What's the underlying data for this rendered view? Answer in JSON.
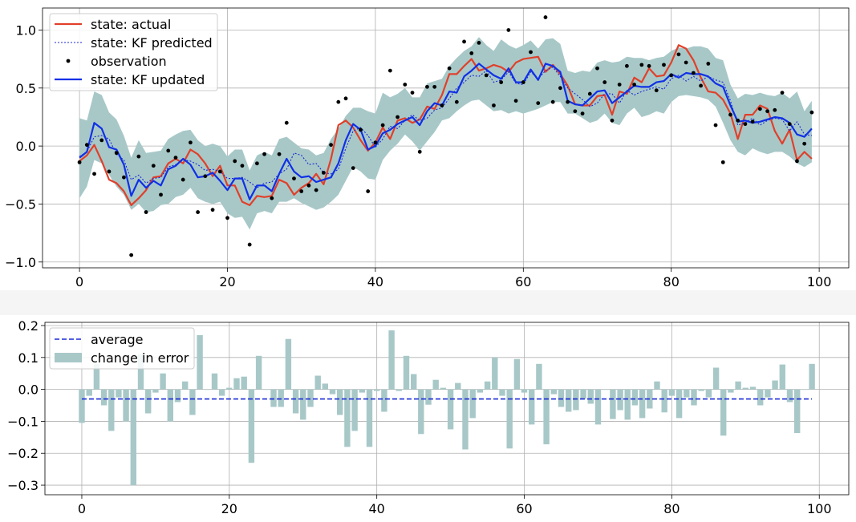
{
  "colors": {
    "actual": "#e0402a",
    "predicted": "#1a2ad6",
    "updated": "#1030e6",
    "band": "#a8c8c8",
    "observation": "#000000",
    "average": "#1a2ad6",
    "bar": "#a8c8c8",
    "grid": "#b0b0b0"
  },
  "chart_data": [
    {
      "type": "line",
      "xlabel": "",
      "ylabel": "",
      "xlim": [
        -5,
        104
      ],
      "ylim": [
        -1.05,
        1.19
      ],
      "xticks": [
        "0",
        "20",
        "40",
        "60",
        "80",
        "100"
      ],
      "yticks": [
        "−1.0",
        "−0.5",
        "0.0",
        "0.5",
        "1.0"
      ],
      "grid": true,
      "legend_position": "top-left",
      "legend": [
        "state: actual",
        "state: KF predicted",
        "observation",
        "state: KF updated"
      ],
      "series": [
        {
          "name": "state: actual",
          "values": [
            -0.13,
            -0.08,
            0.01,
            -0.13,
            -0.29,
            -0.32,
            -0.39,
            -0.51,
            -0.45,
            -0.38,
            -0.27,
            -0.26,
            -0.15,
            -0.11,
            -0.15,
            -0.03,
            -0.07,
            -0.15,
            -0.26,
            -0.17,
            -0.34,
            -0.34,
            -0.48,
            -0.51,
            -0.43,
            -0.44,
            -0.43,
            -0.29,
            -0.32,
            -0.42,
            -0.36,
            -0.32,
            -0.24,
            -0.33,
            -0.11,
            0.18,
            0.22,
            0.16,
            0.05,
            -0.04,
            0.03,
            0.16,
            0.06,
            0.22,
            0.24,
            0.2,
            0.23,
            0.34,
            0.32,
            0.44,
            0.62,
            0.62,
            0.69,
            0.75,
            0.65,
            0.67,
            0.7,
            0.68,
            0.64,
            0.72,
            0.75,
            0.76,
            0.77,
            0.64,
            0.7,
            0.62,
            0.52,
            0.36,
            0.35,
            0.35,
            0.43,
            0.44,
            0.27,
            0.47,
            0.45,
            0.59,
            0.55,
            0.67,
            0.6,
            0.61,
            0.72,
            0.87,
            0.84,
            0.74,
            0.59,
            0.47,
            0.46,
            0.4,
            0.28,
            0.06,
            0.27,
            0.27,
            0.35,
            0.32,
            0.13,
            0.02,
            0.14,
            -0.12,
            -0.05,
            -0.11
          ]
        },
        {
          "name": "state: KF predicted",
          "values": [
            -0.09,
            -0.05,
            0.08,
            0.09,
            0.06,
            -0.07,
            -0.12,
            -0.29,
            -0.25,
            -0.32,
            -0.28,
            -0.27,
            -0.18,
            -0.16,
            -0.12,
            -0.13,
            -0.16,
            -0.21,
            -0.2,
            -0.22,
            -0.28,
            -0.28,
            -0.27,
            -0.31,
            -0.36,
            -0.32,
            -0.31,
            -0.24,
            -0.2,
            -0.06,
            -0.08,
            -0.16,
            -0.15,
            -0.23,
            -0.24,
            -0.2,
            -0.02,
            0.13,
            0.16,
            0.09,
            -0.01,
            0.06,
            0.17,
            0.15,
            0.22,
            0.27,
            0.22,
            0.24,
            0.31,
            0.33,
            0.41,
            0.5,
            0.55,
            0.61,
            0.6,
            0.65,
            0.55,
            0.57,
            0.64,
            0.54,
            0.53,
            0.64,
            0.58,
            0.65,
            0.68,
            0.6,
            0.5,
            0.45,
            0.4,
            0.34,
            0.37,
            0.45,
            0.45,
            0.37,
            0.48,
            0.44,
            0.47,
            0.49,
            0.51,
            0.49,
            0.58,
            0.61,
            0.56,
            0.6,
            0.56,
            0.6,
            0.57,
            0.55,
            0.39,
            0.18,
            0.2,
            0.24,
            0.18,
            0.22,
            0.24,
            0.23,
            0.13,
            0.21,
            0.1,
            0.09
          ]
        },
        {
          "name": "state: KF updated",
          "values": [
            -0.1,
            -0.05,
            0.2,
            0.15,
            -0.01,
            -0.03,
            -0.16,
            -0.43,
            -0.29,
            -0.36,
            -0.3,
            -0.34,
            -0.2,
            -0.17,
            -0.11,
            -0.16,
            -0.27,
            -0.26,
            -0.23,
            -0.3,
            -0.38,
            -0.28,
            -0.28,
            -0.46,
            -0.34,
            -0.34,
            -0.39,
            -0.24,
            -0.11,
            -0.22,
            -0.27,
            -0.26,
            -0.31,
            -0.29,
            -0.27,
            -0.15,
            0.05,
            0.19,
            0.14,
            -0.03,
            0.0,
            0.11,
            0.14,
            0.19,
            0.22,
            0.25,
            0.18,
            0.3,
            0.37,
            0.35,
            0.47,
            0.46,
            0.6,
            0.65,
            0.71,
            0.66,
            0.61,
            0.58,
            0.67,
            0.55,
            0.55,
            0.66,
            0.57,
            0.71,
            0.69,
            0.64,
            0.39,
            0.36,
            0.35,
            0.41,
            0.47,
            0.48,
            0.37,
            0.42,
            0.47,
            0.52,
            0.51,
            0.51,
            0.55,
            0.56,
            0.62,
            0.59,
            0.63,
            0.62,
            0.62,
            0.6,
            0.54,
            0.51,
            0.35,
            0.21,
            0.22,
            0.2,
            0.21,
            0.23,
            0.25,
            0.24,
            0.2,
            0.1,
            0.08,
            0.15
          ]
        },
        {
          "name": "observation",
          "type": "scatter",
          "x": [
            0,
            1,
            2,
            3,
            4,
            5,
            6,
            7,
            8,
            9,
            10,
            11,
            12,
            13,
            14,
            15,
            16,
            17,
            18,
            19,
            20,
            21,
            22,
            23,
            24,
            25,
            26,
            27,
            28,
            29,
            30,
            31,
            32,
            33,
            34,
            35,
            36,
            37,
            38,
            39,
            40,
            41,
            42,
            43,
            44,
            45,
            46,
            47,
            48,
            49,
            50,
            51,
            52,
            53,
            54,
            55,
            56,
            57,
            58,
            59,
            60,
            61,
            62,
            63,
            64,
            65,
            66,
            67,
            68,
            69,
            70,
            71,
            72,
            73,
            74,
            75,
            76,
            77,
            78,
            79,
            80,
            81,
            82,
            83,
            84,
            85,
            86,
            87,
            88,
            89,
            90,
            91,
            92,
            93,
            94,
            95,
            96,
            97,
            98,
            99
          ],
          "values": [
            -0.14,
            0.01,
            -0.24,
            0.05,
            -0.22,
            -0.06,
            -0.27,
            -0.94,
            -0.09,
            -0.57,
            -0.17,
            -0.42,
            -0.04,
            -0.1,
            -0.29,
            0.03,
            -0.57,
            -0.26,
            -0.55,
            -0.22,
            -0.62,
            -0.13,
            -0.17,
            -0.85,
            -0.15,
            -0.07,
            -0.45,
            -0.07,
            0.2,
            -0.28,
            -0.39,
            -0.34,
            -0.38,
            -0.23,
            0.01,
            0.38,
            0.41,
            -0.19,
            0.14,
            -0.39,
            0.03,
            0.18,
            0.65,
            0.25,
            0.53,
            0.46,
            -0.05,
            0.51,
            0.51,
            0.35,
            0.67,
            0.38,
            0.9,
            0.8,
            0.89,
            0.61,
            0.35,
            0.55,
            1.0,
            0.39,
            0.55,
            0.81,
            0.37,
            1.11,
            0.38,
            0.5,
            0.38,
            0.3,
            0.28,
            0.45,
            0.67,
            0.55,
            0.22,
            0.53,
            0.69,
            0.53,
            0.7,
            0.69,
            0.48,
            0.7,
            0.61,
            0.79,
            0.72,
            0.63,
            0.52,
            0.71,
            0.18,
            -0.14,
            0.27,
            0.22,
            0.19,
            0.21,
            0.32,
            0.3,
            0.31,
            0.46,
            0.19,
            -0.13,
            0.02,
            0.29
          ]
        },
        {
          "name": "confidence band",
          "lower": [
            -0.45,
            -0.35,
            -0.12,
            -0.15,
            -0.25,
            -0.35,
            -0.42,
            -0.55,
            -0.5,
            -0.57,
            -0.56,
            -0.51,
            -0.5,
            -0.44,
            -0.42,
            -0.36,
            -0.45,
            -0.48,
            -0.5,
            -0.48,
            -0.58,
            -0.62,
            -0.61,
            -0.72,
            -0.58,
            -0.56,
            -0.58,
            -0.48,
            -0.48,
            -0.45,
            -0.49,
            -0.52,
            -0.55,
            -0.53,
            -0.48,
            -0.42,
            -0.3,
            -0.18,
            -0.22,
            -0.28,
            -0.29,
            -0.12,
            -0.04,
            0.02,
            0.1,
            0.04,
            -0.04,
            0.04,
            0.12,
            0.22,
            0.24,
            0.3,
            0.35,
            0.39,
            0.4,
            0.35,
            0.3,
            0.31,
            0.28,
            0.3,
            0.28,
            0.3,
            0.32,
            0.35,
            0.38,
            0.38,
            0.28,
            0.28,
            0.24,
            0.2,
            0.22,
            0.28,
            0.2,
            0.18,
            0.28,
            0.33,
            0.25,
            0.27,
            0.3,
            0.28,
            0.38,
            0.43,
            0.44,
            0.43,
            0.42,
            0.4,
            0.34,
            0.2,
            0.05,
            -0.05,
            -0.08,
            -0.02,
            -0.05,
            -0.07,
            -0.05,
            -0.05,
            -0.09,
            -0.15,
            -0.18,
            -0.14
          ],
          "upper": [
            0.24,
            0.22,
            0.47,
            0.44,
            0.29,
            0.23,
            0.09,
            -0.1,
            0.05,
            -0.06,
            -0.05,
            -0.04,
            0.06,
            0.1,
            0.13,
            0.14,
            0.05,
            0.0,
            0.02,
            0.0,
            -0.09,
            -0.03,
            -0.03,
            -0.21,
            -0.08,
            -0.05,
            -0.08,
            0.06,
            0.08,
            0.03,
            -0.02,
            -0.03,
            -0.08,
            -0.06,
            0.06,
            0.15,
            0.26,
            0.33,
            0.33,
            0.3,
            0.28,
            0.46,
            0.42,
            0.45,
            0.5,
            0.42,
            0.42,
            0.54,
            0.56,
            0.58,
            0.69,
            0.76,
            0.82,
            0.86,
            0.94,
            0.87,
            0.82,
            0.92,
            0.87,
            0.84,
            0.87,
            0.91,
            0.84,
            0.92,
            0.93,
            0.88,
            0.65,
            0.63,
            0.65,
            0.64,
            0.72,
            0.74,
            0.72,
            0.73,
            0.77,
            0.76,
            0.76,
            0.74,
            0.76,
            0.77,
            0.82,
            0.85,
            0.84,
            0.86,
            0.86,
            0.84,
            0.76,
            0.74,
            0.53,
            0.41,
            0.45,
            0.44,
            0.46,
            0.44,
            0.43,
            0.46,
            0.41,
            0.47,
            0.3,
            0.39
          ]
        }
      ]
    },
    {
      "type": "bar",
      "xlabel": "",
      "ylabel": "",
      "xlim": [
        -5,
        104
      ],
      "ylim": [
        -0.33,
        0.21
      ],
      "xticks": [
        "0",
        "20",
        "40",
        "60",
        "80",
        "100"
      ],
      "yticks": [
        "−0.3",
        "−0.2",
        "−0.1",
        "0.0",
        "0.1",
        "0.2"
      ],
      "grid": true,
      "legend_position": "top-left",
      "legend": [
        "average",
        "change in error"
      ],
      "average": -0.03,
      "series": [
        {
          "name": "change in error",
          "values": [
            -0.105,
            -0.02,
            0.08,
            -0.05,
            -0.13,
            -0.025,
            -0.1,
            -0.3,
            0.11,
            -0.075,
            -0.01,
            0.05,
            -0.1,
            -0.04,
            0.025,
            -0.08,
            0.17,
            0.0,
            0.05,
            -0.02,
            0.005,
            0.035,
            0.04,
            -0.23,
            0.105,
            0.0,
            -0.055,
            -0.055,
            0.158,
            -0.075,
            -0.095,
            -0.055,
            0.043,
            0.018,
            -0.015,
            -0.08,
            -0.18,
            -0.13,
            -0.01,
            -0.18,
            -0.005,
            -0.07,
            0.185,
            -0.005,
            0.105,
            0.048,
            -0.14,
            -0.048,
            0.03,
            0.005,
            -0.125,
            0.02,
            -0.188,
            -0.09,
            -0.01,
            0.025,
            0.1,
            -0.02,
            -0.185,
            0.095,
            -0.01,
            -0.11,
            0.08,
            -0.172,
            -0.015,
            -0.055,
            -0.07,
            -0.065,
            -0.03,
            -0.045,
            -0.11,
            0.0,
            -0.093,
            -0.065,
            -0.095,
            -0.05,
            -0.09,
            -0.06,
            0.025,
            -0.072,
            -0.02,
            -0.09,
            -0.025,
            -0.05,
            -0.005,
            -0.025,
            0.068,
            -0.145,
            -0.01,
            0.025,
            0.005,
            0.008,
            -0.05,
            -0.025,
            0.028,
            0.078,
            -0.04,
            -0.137,
            0.0,
            0.08
          ]
        }
      ]
    }
  ]
}
